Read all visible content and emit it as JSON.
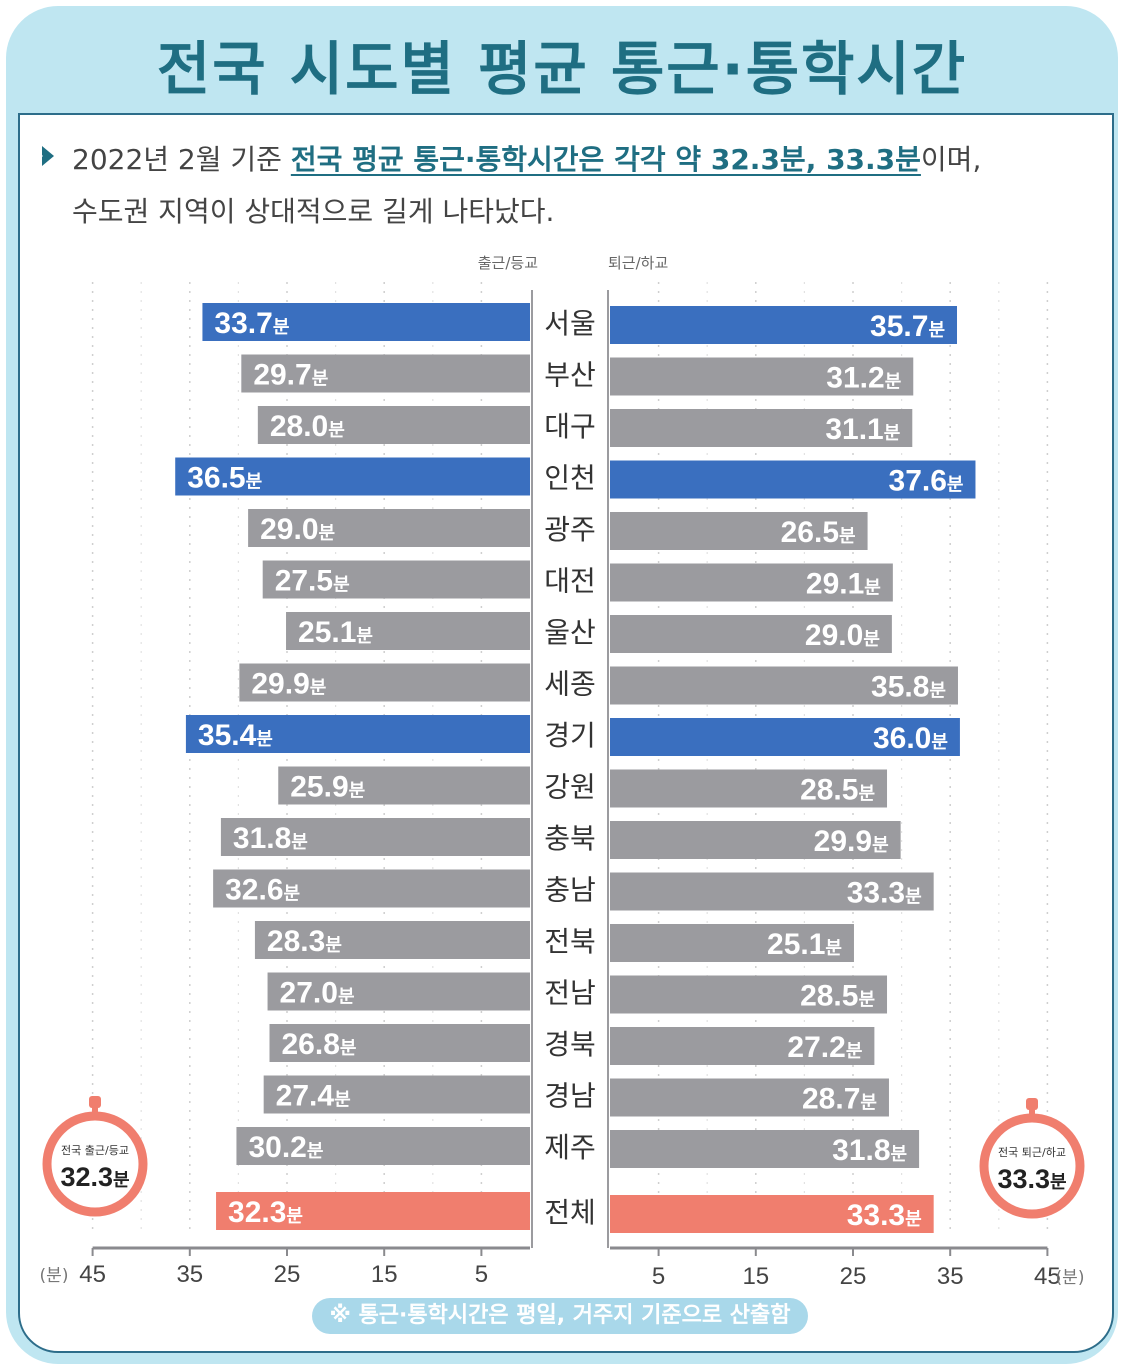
{
  "header": {
    "title": "전국 시도별 평균 통근·통학시간"
  },
  "intro": {
    "pre": "2022년 2월 기준 ",
    "highlight": "전국 평균 통근·통학시간은 각각 약 32.3분, 33.3분",
    "post": "이며,",
    "line2": "수도권 지역이 상대적으로 길게 나타났다."
  },
  "footnote": "※ 통근·통학시간은 평일, 거주지 기준으로 산출함",
  "colors": {
    "highlight_bar": "#3a6fbf",
    "normal_bar": "#9b9b9f",
    "total_bar": "#f07e6e",
    "title": "#1f6e82"
  },
  "chart_data": {
    "type": "bar",
    "orientation": "horizontal-diverging",
    "left_label": "출근/등교",
    "right_label": "퇴근/하교",
    "unit_suffix": "분",
    "axis_unit": "(분)",
    "xlim": [
      0,
      45
    ],
    "left_ticks": [
      "45",
      "35",
      "25",
      "15",
      "5"
    ],
    "right_ticks": [
      "5",
      "15",
      "25",
      "35",
      "45"
    ],
    "categories": [
      "서울",
      "부산",
      "대구",
      "인천",
      "광주",
      "대전",
      "울산",
      "세종",
      "경기",
      "강원",
      "충북",
      "충남",
      "전북",
      "전남",
      "경북",
      "경남",
      "제주",
      "전체"
    ],
    "series": [
      {
        "name": "출근/등교",
        "values": [
          33.7,
          29.7,
          28.0,
          36.5,
          29.0,
          27.5,
          25.1,
          29.9,
          35.4,
          25.9,
          31.8,
          32.6,
          28.3,
          27.0,
          26.8,
          27.4,
          30.2,
          32.3
        ]
      },
      {
        "name": "퇴근/하교",
        "values": [
          35.7,
          31.2,
          31.1,
          37.6,
          26.5,
          29.1,
          29.0,
          35.8,
          36.0,
          28.5,
          29.9,
          33.3,
          25.1,
          28.5,
          27.2,
          28.7,
          31.8,
          33.3
        ]
      }
    ],
    "highlight_categories": [
      "서울",
      "인천",
      "경기"
    ],
    "total_category": "전체",
    "value_labels_left": [
      "33.7",
      "29.7",
      "28.0",
      "36.5",
      "29.0",
      "27.5",
      "25.1",
      "29.9",
      "35.4",
      "25.9",
      "31.8",
      "32.6",
      "28.3",
      "27.0",
      "26.8",
      "27.4",
      "30.2",
      "32.3"
    ],
    "value_labels_right": [
      "35.7",
      "31.2",
      "31.1",
      "37.6",
      "26.5",
      "29.1",
      "29.0",
      "35.8",
      "36.0",
      "28.5",
      "29.9",
      "33.3",
      "25.1",
      "28.5",
      "27.2",
      "28.7",
      "31.8",
      "33.3"
    ],
    "badges": [
      {
        "label": "전국 출근/등교",
        "value": "32.3",
        "unit": "분"
      },
      {
        "label": "전국 퇴근/하교",
        "value": "33.3",
        "unit": "분"
      }
    ]
  }
}
